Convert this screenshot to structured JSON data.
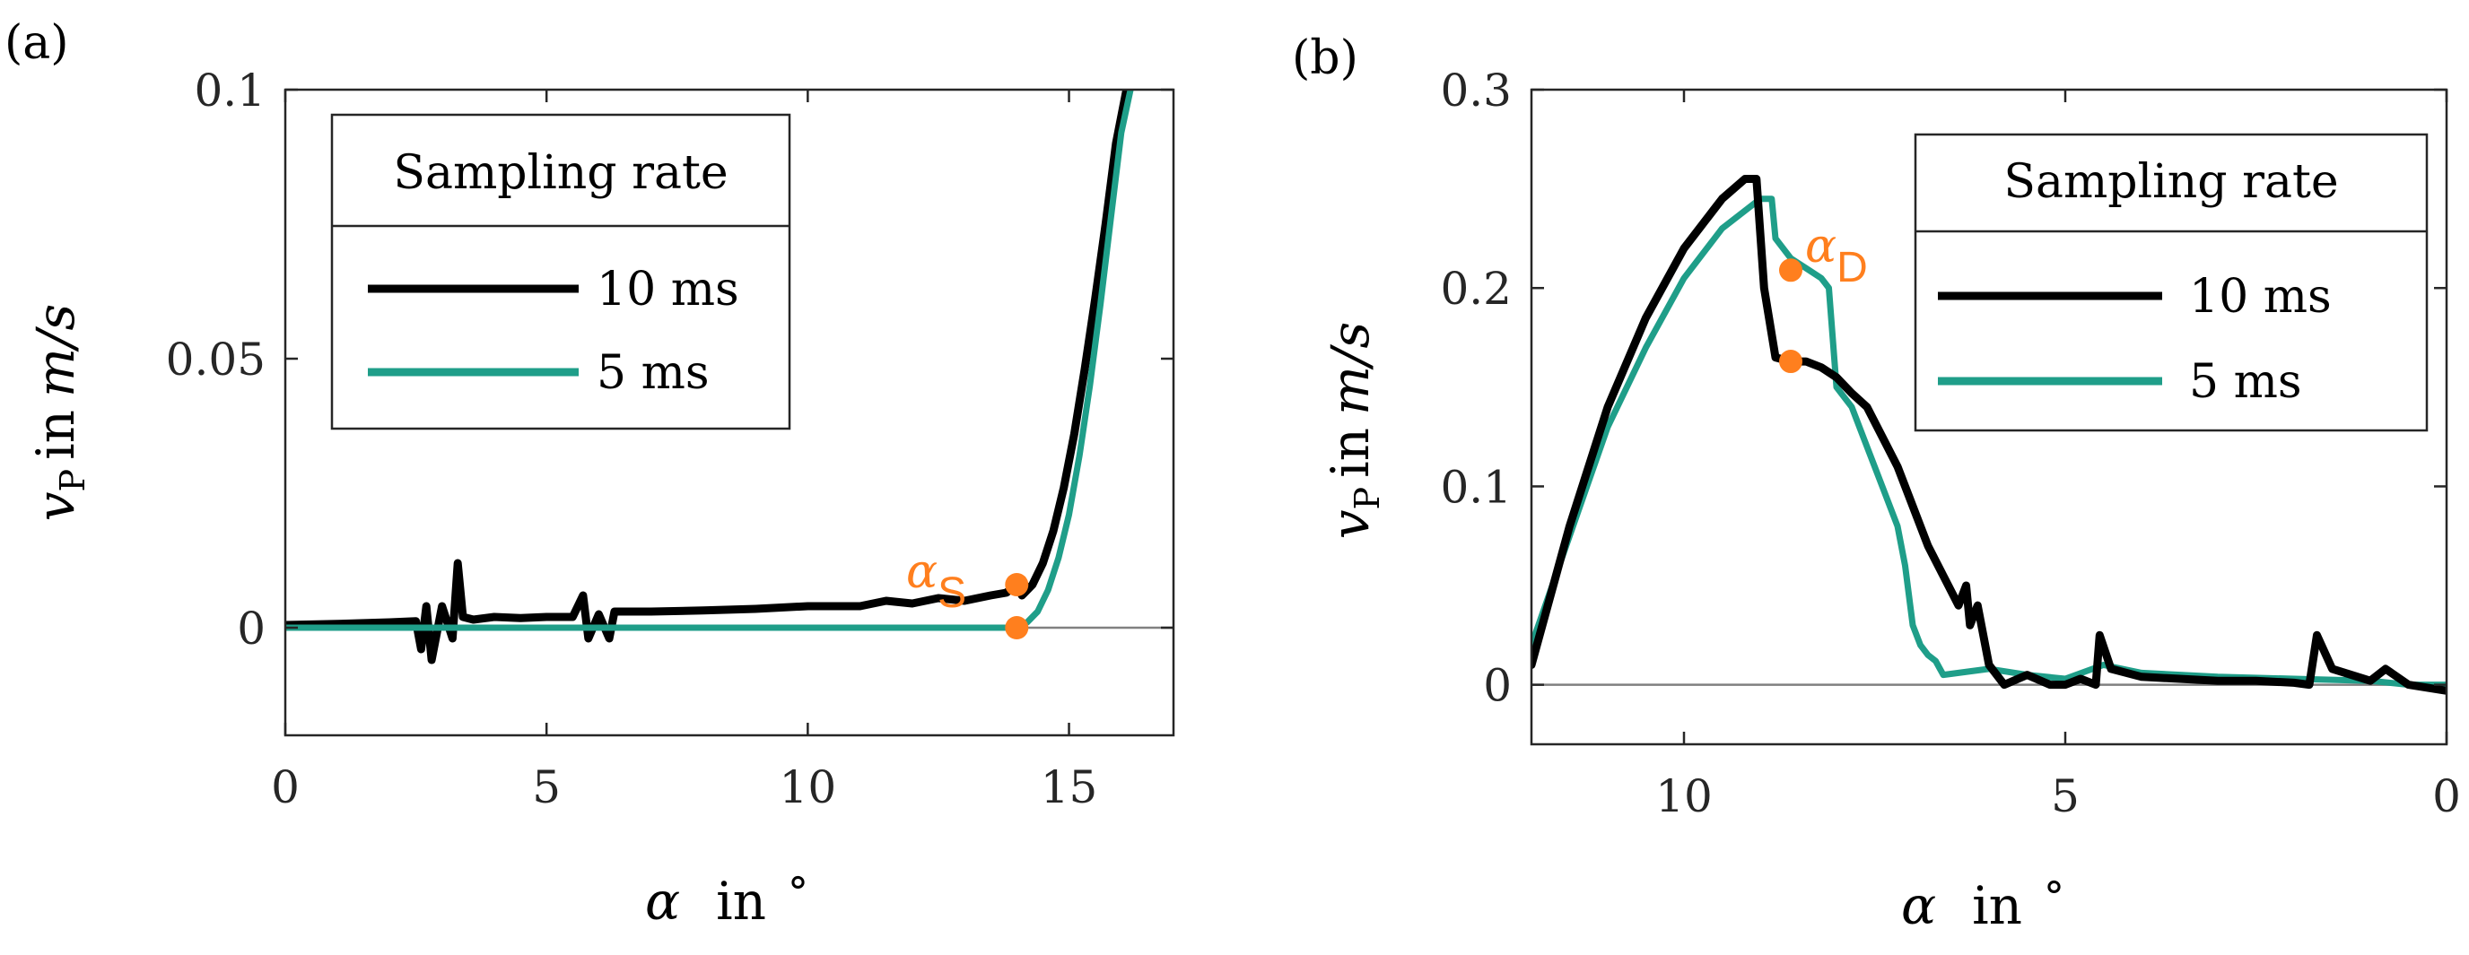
{
  "colors": {
    "series_10ms": "#000000",
    "series_5ms": "#1f9e89",
    "marker": "#ff7f1e",
    "axis": "#262626",
    "zero_line": "#808080"
  },
  "chart_data": [
    {
      "panel_label": "(a)",
      "type": "line",
      "xlabel": {
        "symbol": "α",
        "text": "in",
        "unit": "°"
      },
      "ylabel": {
        "symbol": "v",
        "subscript": "P",
        "text": "in",
        "unit": "m/s"
      },
      "xlim": [
        0,
        17
      ],
      "ylim": [
        -0.02,
        0.1
      ],
      "x_reversed": false,
      "xticks": [
        0,
        5,
        10,
        15
      ],
      "xtick_labels": [
        "0",
        "5",
        "10",
        "15"
      ],
      "yticks": [
        0,
        0.05,
        0.1
      ],
      "ytick_labels": [
        "0",
        "0.05",
        "0.1"
      ],
      "legend": {
        "title": "Sampling rate",
        "position": "top-left",
        "entries": [
          "10 ms",
          "5 ms"
        ]
      },
      "series": [
        {
          "name": "10 ms",
          "x": [
            0,
            1,
            2,
            2.5,
            2.6,
            2.7,
            2.8,
            3.0,
            3.2,
            3.3,
            3.4,
            3.6,
            4.0,
            4.5,
            5.0,
            5.5,
            5.7,
            5.8,
            6.0,
            6.2,
            6.3,
            7.0,
            8.0,
            9.0,
            10.0,
            11.0,
            11.5,
            12.0,
            12.5,
            13.0,
            13.5,
            13.8,
            14.0,
            14.1,
            14.3,
            14.5,
            14.7,
            14.9,
            15.1,
            15.3,
            15.5,
            15.7,
            15.9,
            16.1
          ],
          "y": [
            0.0005,
            0.0007,
            0.001,
            0.0012,
            -0.004,
            0.004,
            -0.006,
            0.004,
            -0.002,
            0.012,
            0.002,
            0.0015,
            0.002,
            0.0018,
            0.002,
            0.002,
            0.006,
            -0.002,
            0.0025,
            -0.002,
            0.003,
            0.003,
            0.0032,
            0.0035,
            0.004,
            0.004,
            0.005,
            0.0045,
            0.0055,
            0.005,
            0.006,
            0.0065,
            0.008,
            0.006,
            0.008,
            0.012,
            0.018,
            0.026,
            0.036,
            0.048,
            0.061,
            0.075,
            0.09,
            0.1
          ]
        },
        {
          "name": "5 ms",
          "x": [
            0,
            2,
            4,
            6,
            8,
            10,
            12,
            13,
            14.0,
            14.2,
            14.4,
            14.6,
            14.8,
            15.0,
            15.2,
            15.4,
            15.6,
            15.8,
            16.0,
            16.2
          ],
          "y": [
            0,
            0,
            0,
            0,
            0,
            0,
            0,
            0,
            0,
            0.001,
            0.003,
            0.007,
            0.013,
            0.021,
            0.032,
            0.045,
            0.06,
            0.076,
            0.092,
            0.101
          ]
        }
      ],
      "markers": [
        {
          "x": 14.0,
          "y": 0.008,
          "label": "α",
          "label_sub": "S"
        },
        {
          "x": 14.0,
          "y": 0.0,
          "label": "",
          "label_sub": ""
        }
      ]
    },
    {
      "panel_label": "(b)",
      "type": "line",
      "xlabel": {
        "symbol": "α",
        "text": "in",
        "unit": "°"
      },
      "ylabel": {
        "symbol": "v",
        "subscript": "P",
        "text": "in",
        "unit": "m/s"
      },
      "xlim": [
        12,
        0
      ],
      "ylim": [
        -0.03,
        0.3
      ],
      "x_reversed": true,
      "xticks": [
        10,
        5,
        0
      ],
      "xtick_labels": [
        "10",
        "5",
        "0"
      ],
      "yticks": [
        0,
        0.1,
        0.2,
        0.3
      ],
      "ytick_labels": [
        "0",
        "0.1",
        "0.2",
        "0.3"
      ],
      "legend": {
        "title": "Sampling rate",
        "position": "top-right",
        "entries": [
          "10 ms",
          "5 ms"
        ]
      },
      "series": [
        {
          "name": "10 ms",
          "x": [
            12.0,
            11.5,
            11.0,
            10.5,
            10.0,
            9.5,
            9.2,
            9.05,
            8.95,
            8.8,
            8.6,
            8.4,
            8.2,
            8.0,
            7.8,
            7.6,
            7.4,
            7.2,
            7.0,
            6.8,
            6.6,
            6.4,
            6.3,
            6.25,
            6.15,
            6.0,
            5.8,
            5.5,
            5.2,
            5.0,
            4.8,
            4.6,
            4.55,
            4.4,
            4.0,
            3.5,
            3.0,
            2.5,
            2.0,
            1.8,
            1.7,
            1.5,
            1.0,
            0.8,
            0.5,
            0.0
          ],
          "y": [
            0.01,
            0.08,
            0.14,
            0.185,
            0.22,
            0.245,
            0.255,
            0.255,
            0.2,
            0.165,
            0.163,
            0.163,
            0.16,
            0.155,
            0.147,
            0.14,
            0.125,
            0.11,
            0.09,
            0.07,
            0.055,
            0.04,
            0.05,
            0.03,
            0.04,
            0.01,
            0.0,
            0.005,
            0.0,
            0.0,
            0.003,
            0.0,
            0.025,
            0.008,
            0.004,
            0.003,
            0.002,
            0.002,
            0.001,
            0.0,
            0.025,
            0.008,
            0.002,
            0.008,
            0.0,
            -0.003
          ]
        },
        {
          "name": "5 ms",
          "x": [
            12.0,
            11.5,
            11.0,
            10.5,
            10.0,
            9.5,
            9.0,
            8.85,
            8.8,
            8.6,
            8.4,
            8.2,
            8.1,
            8.0,
            7.8,
            7.6,
            7.4,
            7.2,
            7.1,
            7.0,
            6.9,
            6.8,
            6.7,
            6.6,
            6.0,
            5.5,
            5.0,
            4.5,
            4.0,
            3.0,
            2.0,
            1.0,
            0.5,
            0.0
          ],
          "y": [
            0.02,
            0.075,
            0.13,
            0.17,
            0.205,
            0.23,
            0.245,
            0.245,
            0.225,
            0.215,
            0.21,
            0.205,
            0.2,
            0.15,
            0.14,
            0.12,
            0.1,
            0.08,
            0.06,
            0.03,
            0.02,
            0.015,
            0.012,
            0.005,
            0.008,
            0.005,
            0.003,
            0.01,
            0.006,
            0.004,
            0.003,
            0.002,
            0.0,
            0.0
          ]
        }
      ],
      "markers": [
        {
          "x": 8.6,
          "y": 0.209,
          "label": "α",
          "label_sub": "D"
        },
        {
          "x": 8.6,
          "y": 0.163,
          "label": "",
          "label_sub": ""
        }
      ]
    }
  ]
}
